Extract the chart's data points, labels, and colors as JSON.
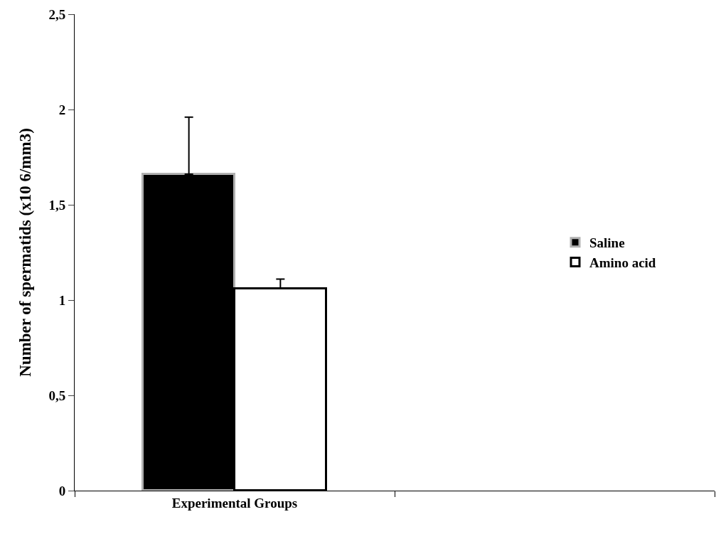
{
  "chart_data": {
    "type": "bar",
    "ylabel": "Number of spermatids (x10 6/mm3)",
    "categories": [
      "Experimental Groups",
      null
    ],
    "series": [
      {
        "name": "Saline",
        "color": "#000000",
        "values": [
          1.66,
          null
        ],
        "errors": [
          [
            1.66,
            1.96
          ],
          null
        ]
      },
      {
        "name": "Amino acid",
        "color": "#ffffff",
        "values": [
          1.06,
          null
        ],
        "errors": [
          [
            1.06,
            1.11
          ],
          null
        ]
      }
    ],
    "ylim": [
      0,
      2.5
    ],
    "yticks": [
      0,
      {
        "value": 0.5,
        "label": "0,5"
      },
      1,
      {
        "value": 1.5,
        "label": "1,5"
      },
      2,
      {
        "value": 2.5,
        "label": "2,5"
      }
    ],
    "legend": "right"
  }
}
